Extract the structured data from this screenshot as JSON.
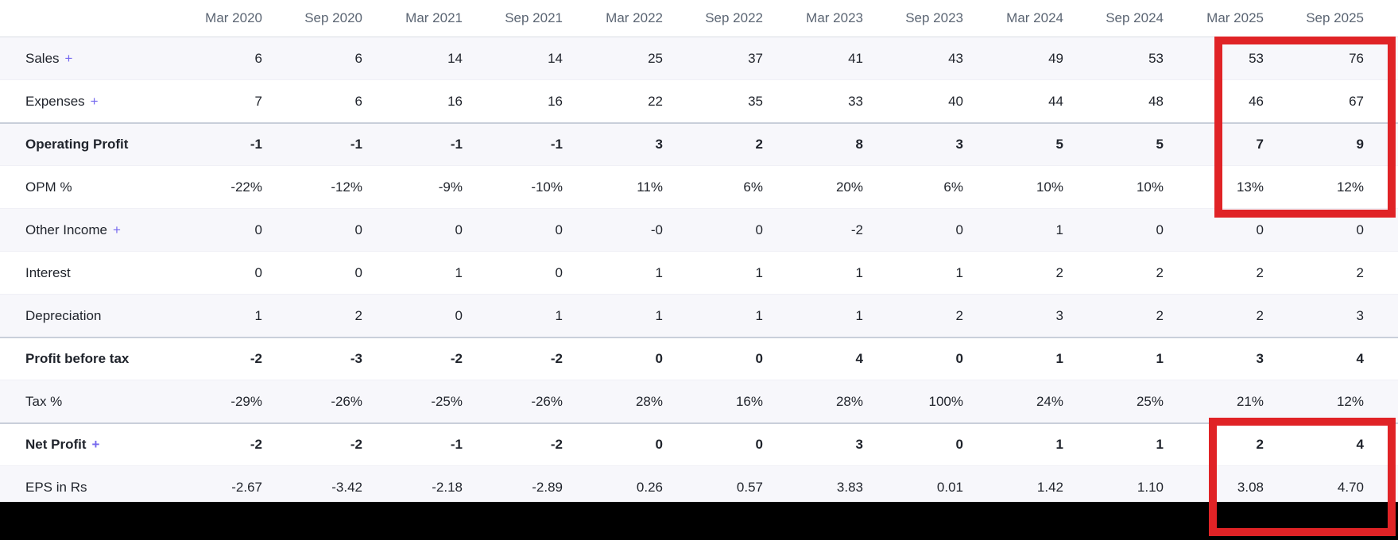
{
  "table": {
    "columns": [
      "Mar 2020",
      "Sep 2020",
      "Mar 2021",
      "Sep 2021",
      "Mar 2022",
      "Sep 2022",
      "Mar 2023",
      "Sep 2023",
      "Mar 2024",
      "Sep 2024",
      "Mar 2025",
      "Sep 2025"
    ],
    "expand_symbol": "+",
    "rows": [
      {
        "id": "sales",
        "label": "Sales",
        "expandable": true,
        "bold": false,
        "values": [
          "6",
          "6",
          "14",
          "14",
          "25",
          "37",
          "41",
          "43",
          "49",
          "53",
          "53",
          "76"
        ]
      },
      {
        "id": "expenses",
        "label": "Expenses",
        "expandable": true,
        "bold": false,
        "values": [
          "7",
          "6",
          "16",
          "16",
          "22",
          "35",
          "33",
          "40",
          "44",
          "48",
          "46",
          "67"
        ]
      },
      {
        "id": "operating-profit",
        "label": "Operating Profit",
        "expandable": false,
        "bold": true,
        "values": [
          "-1",
          "-1",
          "-1",
          "-1",
          "3",
          "2",
          "8",
          "3",
          "5",
          "5",
          "7",
          "9"
        ]
      },
      {
        "id": "opm-percent",
        "label": "OPM %",
        "expandable": false,
        "bold": false,
        "values": [
          "-22%",
          "-12%",
          "-9%",
          "-10%",
          "11%",
          "6%",
          "20%",
          "6%",
          "10%",
          "10%",
          "13%",
          "12%"
        ]
      },
      {
        "id": "other-income",
        "label": "Other Income",
        "expandable": true,
        "bold": false,
        "values": [
          "0",
          "0",
          "0",
          "0",
          "-0",
          "0",
          "-2",
          "0",
          "1",
          "0",
          "0",
          "0"
        ]
      },
      {
        "id": "interest",
        "label": "Interest",
        "expandable": false,
        "bold": false,
        "values": [
          "0",
          "0",
          "1",
          "0",
          "1",
          "1",
          "1",
          "1",
          "2",
          "2",
          "2",
          "2"
        ]
      },
      {
        "id": "depreciation",
        "label": "Depreciation",
        "expandable": false,
        "bold": false,
        "values": [
          "1",
          "2",
          "0",
          "1",
          "1",
          "1",
          "1",
          "2",
          "3",
          "2",
          "2",
          "3"
        ]
      },
      {
        "id": "profit-before-tax",
        "label": "Profit before tax",
        "expandable": false,
        "bold": true,
        "values": [
          "-2",
          "-3",
          "-2",
          "-2",
          "0",
          "0",
          "4",
          "0",
          "1",
          "1",
          "3",
          "4"
        ]
      },
      {
        "id": "tax-percent",
        "label": "Tax %",
        "expandable": false,
        "bold": false,
        "values": [
          "-29%",
          "-26%",
          "-25%",
          "-26%",
          "28%",
          "16%",
          "28%",
          "100%",
          "24%",
          "25%",
          "21%",
          "12%"
        ]
      },
      {
        "id": "net-profit",
        "label": "Net Profit",
        "expandable": true,
        "bold": true,
        "values": [
          "-2",
          "-2",
          "-1",
          "-2",
          "0",
          "0",
          "3",
          "0",
          "1",
          "1",
          "2",
          "4"
        ]
      },
      {
        "id": "eps",
        "label": "EPS in Rs",
        "expandable": false,
        "bold": false,
        "values": [
          "-2.67",
          "-3.42",
          "-2.18",
          "-2.89",
          "0.26",
          "0.57",
          "3.83",
          "0.01",
          "1.42",
          "1.10",
          "3.08",
          "4.70"
        ]
      }
    ]
  },
  "annotations": {
    "highlight_color": "#e02326",
    "boxes": [
      {
        "name": "highlight-box-recent-sales-to-opm",
        "columns_covered": [
          "Mar 2025",
          "Sep 2025"
        ],
        "rows_covered": [
          "Sales",
          "Expenses",
          "Operating Profit",
          "OPM %"
        ]
      },
      {
        "name": "highlight-box-recent-netprofit-eps",
        "columns_covered": [
          "Mar 2025",
          "Sep 2025"
        ],
        "rows_covered": [
          "Net Profit",
          "EPS in Rs"
        ]
      }
    ]
  },
  "colors": {
    "background": "#ffffff",
    "row_stripe": "#f7f7fb",
    "text": "#1f232b",
    "header_text": "#5b6573",
    "expand_link": "#7568ee",
    "section_border": "#c9cfda",
    "bottom_bar": "#000000"
  }
}
